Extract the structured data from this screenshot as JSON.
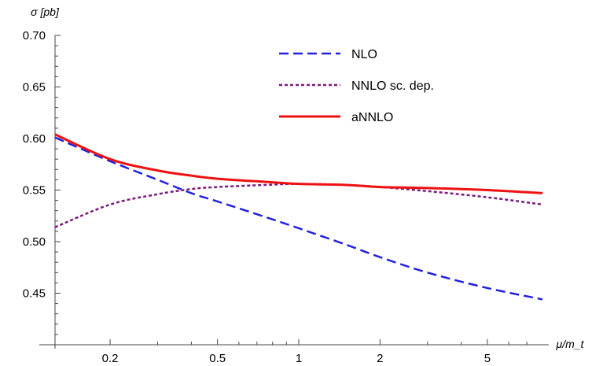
{
  "chart_data": {
    "type": "line",
    "xscale": "log",
    "xlim": [
      0.125,
      8.0
    ],
    "ylim": [
      0.4,
      0.7
    ],
    "xlabel": "μ/m_t",
    "ylabel": "σ [pb]",
    "xticks": [
      0.2,
      0.5,
      1,
      2,
      5
    ],
    "xtick_labels": [
      "0.2",
      "0.5",
      "1",
      "2",
      "5"
    ],
    "yticks": [
      0.45,
      0.5,
      0.55,
      0.6,
      0.65,
      0.7
    ],
    "ytick_labels": [
      "0.45",
      "0.50",
      "0.55",
      "0.60",
      "0.65",
      "0.70"
    ],
    "grid": false,
    "legend_position": "top-right",
    "series": [
      {
        "name": "NLO",
        "style": "dashed",
        "color": "#2222dd",
        "x": [
          0.125,
          0.2,
          0.3,
          0.4,
          0.5,
          0.75,
          1,
          1.5,
          2,
          3,
          5,
          8
        ],
        "y": [
          0.601,
          0.578,
          0.56,
          0.547,
          0.539,
          0.524,
          0.513,
          0.497,
          0.485,
          0.47,
          0.455,
          0.444
        ]
      },
      {
        "name": "NNLO sc. dep.",
        "style": "dotted",
        "color": "#7b1a7b",
        "x": [
          0.125,
          0.2,
          0.3,
          0.4,
          0.5,
          0.75,
          1,
          1.5,
          2,
          3,
          5,
          8
        ],
        "y": [
          0.514,
          0.536,
          0.546,
          0.551,
          0.553,
          0.555,
          0.556,
          0.555,
          0.553,
          0.549,
          0.543,
          0.536
        ]
      },
      {
        "name": "aNNLO",
        "style": "solid",
        "color": "#ee1111",
        "x": [
          0.125,
          0.2,
          0.3,
          0.4,
          0.5,
          0.75,
          1,
          1.5,
          2,
          3,
          5,
          8
        ],
        "y": [
          0.604,
          0.58,
          0.569,
          0.564,
          0.561,
          0.558,
          0.556,
          0.555,
          0.553,
          0.552,
          0.55,
          0.547
        ]
      }
    ]
  }
}
